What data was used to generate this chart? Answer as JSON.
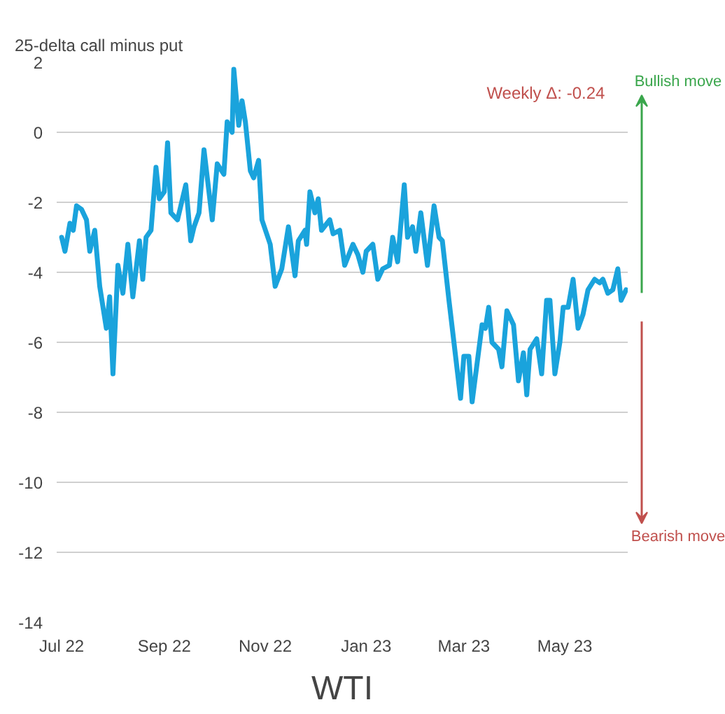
{
  "chart_data": {
    "type": "line",
    "title": "WTI",
    "ylabel": "25-delta call minus put",
    "annotations": [
      "Weekly Δ: -0.24",
      "Bullish move",
      "Bearish move"
    ],
    "x": [
      "2022-07-01",
      "2022-07-03",
      "2022-07-06",
      "2022-07-08",
      "2022-07-10",
      "2022-07-13",
      "2022-07-16",
      "2022-07-18",
      "2022-07-21",
      "2022-07-24",
      "2022-07-28",
      "2022-07-30",
      "2022-08-01",
      "2022-08-04",
      "2022-08-07",
      "2022-08-10",
      "2022-08-13",
      "2022-08-17",
      "2022-08-19",
      "2022-08-21",
      "2022-08-24",
      "2022-08-27",
      "2022-08-29",
      "2022-09-01",
      "2022-09-03",
      "2022-09-05",
      "2022-09-09",
      "2022-09-14",
      "2022-09-17",
      "2022-09-19",
      "2022-09-22",
      "2022-09-25",
      "2022-09-30",
      "2022-10-03",
      "2022-10-07",
      "2022-10-09",
      "2022-10-12",
      "2022-10-13",
      "2022-10-16",
      "2022-10-18",
      "2022-10-20",
      "2022-10-23",
      "2022-10-25",
      "2022-10-28",
      "2022-10-30",
      "2022-11-04",
      "2022-11-07",
      "2022-11-11",
      "2022-11-15",
      "2022-11-19",
      "2022-11-21",
      "2022-11-25",
      "2022-11-26",
      "2022-11-28",
      "2022-12-01",
      "2022-12-03",
      "2022-12-05",
      "2022-12-10",
      "2022-12-12",
      "2022-12-16",
      "2022-12-19",
      "2022-12-24",
      "2022-12-27",
      "2022-12-30",
      "2023-01-01",
      "2023-01-05",
      "2023-01-08",
      "2023-01-11",
      "2023-01-15",
      "2023-01-17",
      "2023-01-20",
      "2023-01-24",
      "2023-01-26",
      "2023-01-29",
      "2023-01-31",
      "2023-02-03",
      "2023-02-07",
      "2023-02-11",
      "2023-02-14",
      "2023-02-16",
      "2023-02-20",
      "2023-02-24",
      "2023-02-27",
      "2023-03-01",
      "2023-03-04",
      "2023-03-06",
      "2023-03-09",
      "2023-03-12",
      "2023-03-14",
      "2023-03-16",
      "2023-03-18",
      "2023-03-22",
      "2023-03-24",
      "2023-03-27",
      "2023-03-31",
      "2023-04-03",
      "2023-04-06",
      "2023-04-08",
      "2023-04-10",
      "2023-04-14",
      "2023-04-17",
      "2023-04-20",
      "2023-04-22",
      "2023-04-25",
      "2023-04-28",
      "2023-04-30",
      "2023-05-03",
      "2023-05-06",
      "2023-05-09",
      "2023-05-12",
      "2023-05-15",
      "2023-05-19",
      "2023-05-22",
      "2023-05-24",
      "2023-05-27",
      "2023-05-30",
      "2023-06-02",
      "2023-06-04",
      "2023-06-07"
    ],
    "series": [
      {
        "color": "#1aa3dc",
        "values": [
          -3.0,
          -3.4,
          -2.6,
          -2.8,
          -2.1,
          -2.2,
          -2.5,
          -3.4,
          -2.8,
          -4.4,
          -5.6,
          -4.7,
          -6.9,
          -3.8,
          -4.6,
          -3.2,
          -4.7,
          -3.1,
          -4.2,
          -3.0,
          -2.8,
          -1.0,
          -1.9,
          -1.7,
          -0.3,
          -2.3,
          -2.5,
          -1.5,
          -3.1,
          -2.7,
          -2.3,
          -0.5,
          -2.5,
          -0.9,
          -1.2,
          0.3,
          0.0,
          1.8,
          0.2,
          0.9,
          0.3,
          -1.1,
          -1.3,
          -0.8,
          -2.5,
          -3.2,
          -4.4,
          -3.9,
          -2.7,
          -4.1,
          -3.1,
          -2.8,
          -3.2,
          -1.7,
          -2.3,
          -1.9,
          -2.8,
          -2.5,
          -2.9,
          -2.8,
          -3.8,
          -3.2,
          -3.5,
          -4.0,
          -3.4,
          -3.2,
          -4.2,
          -3.9,
          -3.8,
          -3.0,
          -3.7,
          -1.5,
          -3.0,
          -2.7,
          -3.4,
          -2.3,
          -3.8,
          -2.1,
          -3.0,
          -3.1,
          -4.8,
          -6.4,
          -7.6,
          -6.4,
          -6.4,
          -7.7,
          -6.6,
          -5.5,
          -5.6,
          -5.0,
          -6.0,
          -6.2,
          -6.7,
          -5.1,
          -5.5,
          -7.1,
          -6.3,
          -7.5,
          -6.2,
          -5.9,
          -6.9,
          -4.8,
          -4.8,
          -6.9,
          -6.0,
          -5.0,
          -5.0,
          -4.2,
          -5.6,
          -5.2,
          -4.5,
          -4.2,
          -4.3,
          -4.2,
          -4.6,
          -4.5,
          -3.9,
          -4.8,
          -4.5
        ]
      }
    ],
    "xlim": [
      "2022-06-28",
      "2023-06-08"
    ],
    "xticks": [
      {
        "value": "2022-07-01",
        "label": "Jul 22"
      },
      {
        "value": "2022-09-01",
        "label": "Sep 22"
      },
      {
        "value": "2022-11-01",
        "label": "Nov 22"
      },
      {
        "value": "2023-01-01",
        "label": "Jan 23"
      },
      {
        "value": "2023-03-01",
        "label": "Mar 23"
      },
      {
        "value": "2023-05-01",
        "label": "May 23"
      }
    ],
    "ylim": [
      -14,
      2
    ],
    "yticks": [
      -14,
      -12,
      -10,
      -8,
      -6,
      -4,
      -2,
      0,
      2
    ],
    "grid": "y"
  }
}
